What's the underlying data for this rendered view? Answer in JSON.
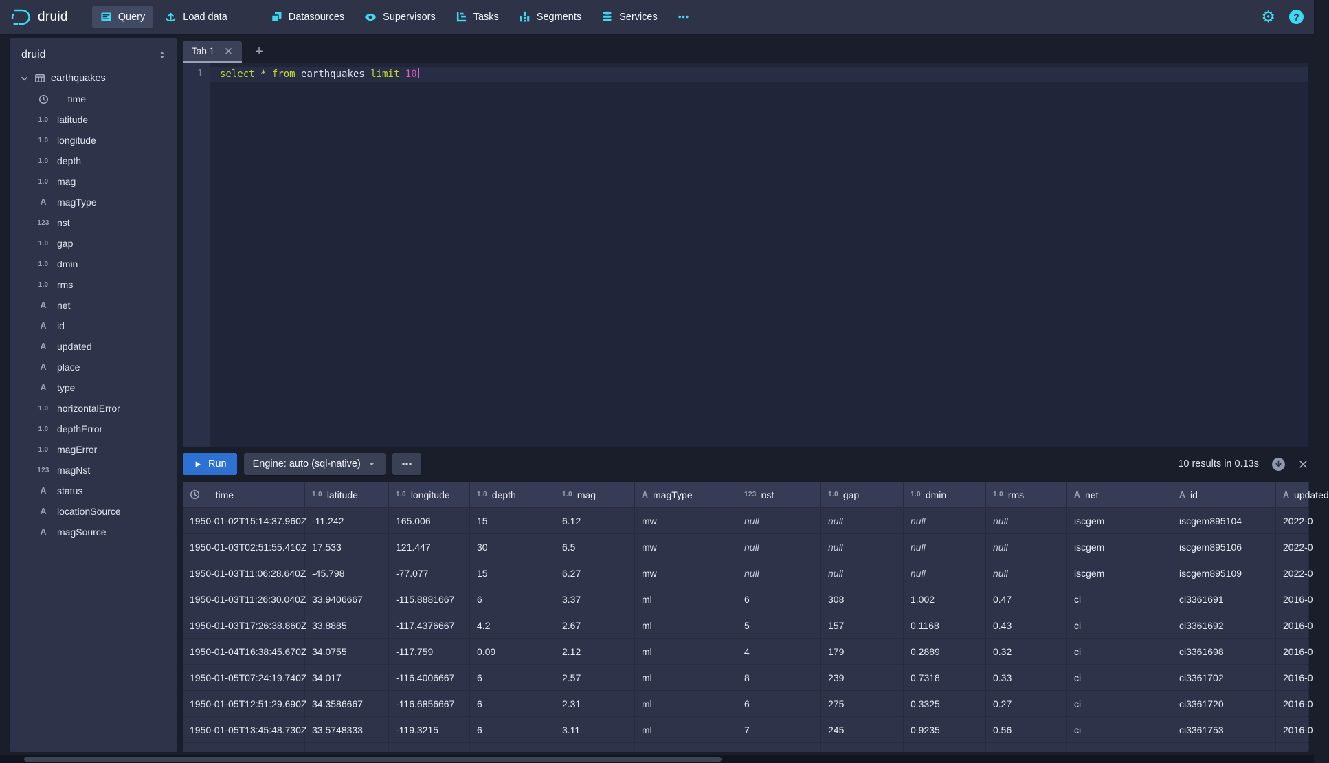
{
  "navbar": {
    "brand": "druid",
    "items": [
      {
        "label": "Query",
        "icon": "query-icon",
        "active": true
      },
      {
        "label": "Load data",
        "icon": "load-data-icon"
      },
      {
        "label": "Datasources",
        "icon": "datasources-icon",
        "divider_before": true
      },
      {
        "label": "Supervisors",
        "icon": "supervisors-icon"
      },
      {
        "label": "Tasks",
        "icon": "tasks-icon"
      },
      {
        "label": "Segments",
        "icon": "segments-icon"
      },
      {
        "label": "Services",
        "icon": "services-icon"
      },
      {
        "icon": "more-icon"
      }
    ],
    "settings_icon": "gear-icon",
    "help_glyph": "?"
  },
  "sidebar": {
    "title": "druid",
    "datasource": "earthquakes",
    "columns": [
      {
        "name": "__time",
        "type": "time"
      },
      {
        "name": "latitude",
        "type": "float"
      },
      {
        "name": "longitude",
        "type": "float"
      },
      {
        "name": "depth",
        "type": "float"
      },
      {
        "name": "mag",
        "type": "float"
      },
      {
        "name": "magType",
        "type": "string"
      },
      {
        "name": "nst",
        "type": "int"
      },
      {
        "name": "gap",
        "type": "float"
      },
      {
        "name": "dmin",
        "type": "float"
      },
      {
        "name": "rms",
        "type": "float"
      },
      {
        "name": "net",
        "type": "string"
      },
      {
        "name": "id",
        "type": "string"
      },
      {
        "name": "updated",
        "type": "string"
      },
      {
        "name": "place",
        "type": "string"
      },
      {
        "name": "type",
        "type": "string"
      },
      {
        "name": "horizontalError",
        "type": "float"
      },
      {
        "name": "depthError",
        "type": "float"
      },
      {
        "name": "magError",
        "type": "float"
      },
      {
        "name": "magNst",
        "type": "int"
      },
      {
        "name": "status",
        "type": "string"
      },
      {
        "name": "locationSource",
        "type": "string"
      },
      {
        "name": "magSource",
        "type": "string"
      }
    ]
  },
  "tabs": {
    "active_label": "Tab 1",
    "add_label": "+"
  },
  "editor": {
    "line_number": "1",
    "tokens": [
      {
        "text": "select",
        "type": "kw"
      },
      {
        "text": " ",
        "type": "ident"
      },
      {
        "text": "*",
        "type": "star"
      },
      {
        "text": " ",
        "type": "ident"
      },
      {
        "text": "from",
        "type": "kw"
      },
      {
        "text": " earthquakes ",
        "type": "ident"
      },
      {
        "text": "limit",
        "type": "kw"
      },
      {
        "text": " ",
        "type": "ident"
      },
      {
        "text": "10",
        "type": "num"
      }
    ]
  },
  "runbar": {
    "run_label": "Run",
    "engine_label": "Engine: auto (sql-native)",
    "status": "10 results in 0.13s"
  },
  "results": {
    "columns": [
      {
        "name": "__time",
        "type": "time"
      },
      {
        "name": "latitude",
        "type": "float"
      },
      {
        "name": "longitude",
        "type": "float"
      },
      {
        "name": "depth",
        "type": "float"
      },
      {
        "name": "mag",
        "type": "float"
      },
      {
        "name": "magType",
        "type": "string"
      },
      {
        "name": "nst",
        "type": "int"
      },
      {
        "name": "gap",
        "type": "float"
      },
      {
        "name": "dmin",
        "type": "float"
      },
      {
        "name": "rms",
        "type": "float"
      },
      {
        "name": "net",
        "type": "string"
      },
      {
        "name": "id",
        "type": "string"
      },
      {
        "name": "updated",
        "type": "string"
      }
    ],
    "rows": [
      [
        "1950-01-02T15:14:37.960Z",
        "-11.242",
        "165.006",
        "15",
        "6.12",
        "mw",
        "null",
        "null",
        "null",
        "null",
        "iscgem",
        "iscgem895104",
        "2022-0"
      ],
      [
        "1950-01-03T02:51:55.410Z",
        "17.533",
        "121.447",
        "30",
        "6.5",
        "mw",
        "null",
        "null",
        "null",
        "null",
        "iscgem",
        "iscgem895106",
        "2022-0"
      ],
      [
        "1950-01-03T11:06:28.640Z",
        "-45.798",
        "-77.077",
        "15",
        "6.27",
        "mw",
        "null",
        "null",
        "null",
        "null",
        "iscgem",
        "iscgem895109",
        "2022-0"
      ],
      [
        "1950-01-03T11:26:30.040Z",
        "33.9406667",
        "-115.8881667",
        "6",
        "3.37",
        "ml",
        "6",
        "308",
        "1.002",
        "0.47",
        "ci",
        "ci3361691",
        "2016-0"
      ],
      [
        "1950-01-03T17:26:38.860Z",
        "33.8885",
        "-117.4376667",
        "4.2",
        "2.67",
        "ml",
        "5",
        "157",
        "0.1168",
        "0.43",
        "ci",
        "ci3361692",
        "2016-0"
      ],
      [
        "1950-01-04T16:38:45.670Z",
        "34.0755",
        "-117.759",
        "0.09",
        "2.12",
        "ml",
        "4",
        "179",
        "0.2889",
        "0.32",
        "ci",
        "ci3361698",
        "2016-0"
      ],
      [
        "1950-01-05T07:24:19.740Z",
        "34.017",
        "-116.4006667",
        "6",
        "2.57",
        "ml",
        "8",
        "239",
        "0.7318",
        "0.33",
        "ci",
        "ci3361702",
        "2016-0"
      ],
      [
        "1950-01-05T12:51:29.690Z",
        "34.3586667",
        "-116.6856667",
        "6",
        "2.31",
        "ml",
        "6",
        "275",
        "0.3325",
        "0.27",
        "ci",
        "ci3361720",
        "2016-0"
      ],
      [
        "1950-01-05T13:45:48.730Z",
        "33.5748333",
        "-119.3215",
        "6",
        "3.11",
        "ml",
        "7",
        "245",
        "0.9235",
        "0.56",
        "ci",
        "ci3361753",
        "2016-0"
      ]
    ],
    "partial_row_visible": true
  },
  "type_badges": {
    "float": "1.0",
    "int": "123",
    "string": "A"
  },
  "colors": {
    "accent_cyan": "#3dd8f2",
    "run_blue": "#2d72d2",
    "panel": "#2f3349",
    "navbar": "#2e3347",
    "keyword": "#c2d831",
    "number_literal": "#e45cc3"
  }
}
